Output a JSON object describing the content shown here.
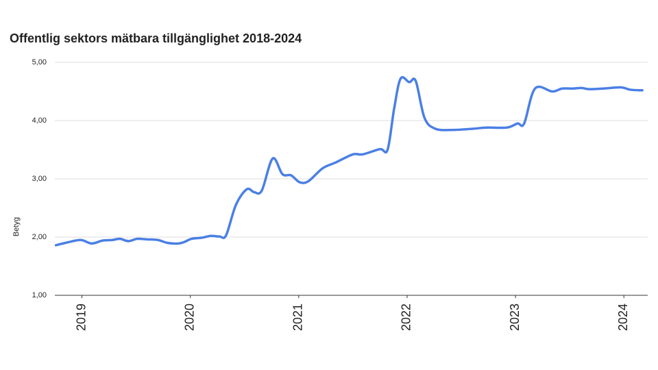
{
  "chart_data": {
    "type": "line",
    "title": "Offentlig sektors mätbara tillgänglighet 2018-2024",
    "y_label": "Betyg",
    "x": [
      2018.76,
      2018.87,
      2018.99,
      2019.09,
      2019.19,
      2019.28,
      2019.35,
      2019.43,
      2019.51,
      2019.6,
      2019.7,
      2019.79,
      2019.89,
      2019.95,
      2020.01,
      2020.11,
      2020.19,
      2020.27,
      2020.33,
      2020.42,
      2020.52,
      2020.59,
      2020.66,
      2020.76,
      2020.85,
      2020.93,
      2021.01,
      2021.09,
      2021.22,
      2021.34,
      2021.5,
      2021.59,
      2021.75,
      2021.82,
      2021.88,
      2021.94,
      2022.02,
      2022.08,
      2022.16,
      2022.26,
      2022.42,
      2022.61,
      2022.73,
      2022.92,
      2023.02,
      2023.08,
      2023.18,
      2023.34,
      2023.43,
      2023.53,
      2023.61,
      2023.68,
      2023.81,
      2023.97,
      2024.06,
      2024.17
    ],
    "series": [
      {
        "name": "Betyg",
        "color": "#4a7fe5",
        "values": [
          1.86,
          1.91,
          1.95,
          1.89,
          1.94,
          1.95,
          1.97,
          1.93,
          1.97,
          1.96,
          1.95,
          1.9,
          1.89,
          1.92,
          1.97,
          1.99,
          2.02,
          2.01,
          2.03,
          2.55,
          2.82,
          2.77,
          2.8,
          3.35,
          3.08,
          3.06,
          2.94,
          2.96,
          3.18,
          3.28,
          3.42,
          3.42,
          3.51,
          3.5,
          4.2,
          4.72,
          4.66,
          4.68,
          4.05,
          3.86,
          3.84,
          3.86,
          3.88,
          3.88,
          3.95,
          3.95,
          4.55,
          4.5,
          4.55,
          4.55,
          4.56,
          4.54,
          4.55,
          4.57,
          4.53,
          4.52
        ]
      }
    ],
    "xlim": [
      2018.75,
      2024.22
    ],
    "xticks": [
      2019,
      2020,
      2021,
      2022,
      2023,
      2024
    ],
    "ylim": [
      1,
      5
    ],
    "yticks": [
      {
        "value": 1,
        "label": "1,00"
      },
      {
        "value": 2,
        "label": "2,00"
      },
      {
        "value": 3,
        "label": "3,00"
      },
      {
        "value": 4,
        "label": "4,00"
      },
      {
        "value": 5,
        "label": "5,00"
      }
    ],
    "grid": true
  }
}
